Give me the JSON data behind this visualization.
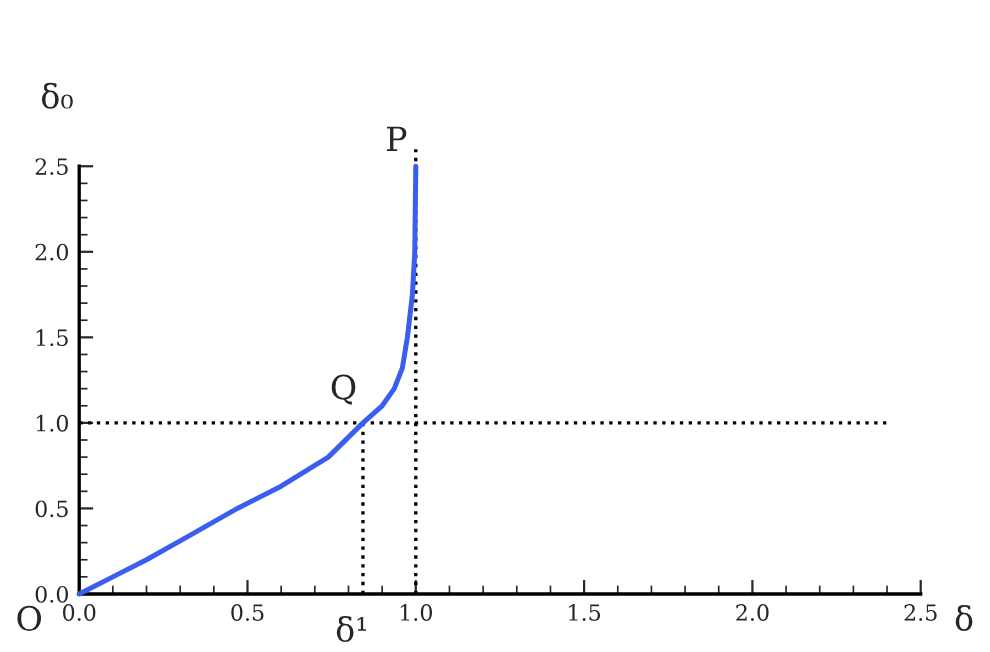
{
  "chart_data": {
    "type": "line",
    "xlabel": "δ",
    "ylabel": "δ₀",
    "series": [
      {
        "color": "#3a5ef0",
        "line_style": "solid",
        "x": [
          0,
          0.1,
          0.2,
          0.3,
          0.47,
          0.6,
          0.74,
          0.843,
          0.9,
          0.936,
          0.96,
          0.975,
          0.99,
          0.997,
          1.0
        ],
        "values": [
          0,
          0.1,
          0.2,
          0.31,
          0.5,
          0.63,
          0.8,
          1.0,
          1.1,
          1.2,
          1.32,
          1.5,
          1.75,
          2.0,
          2.5
        ]
      },
      {
        "color": "#000000",
        "line_style": "dotted",
        "x": [
          0,
          2.4
        ],
        "values": [
          1.0,
          1.0
        ]
      },
      {
        "color": "#000000",
        "line_style": "dotted",
        "x": [
          0.843,
          0.843
        ],
        "values": [
          0,
          1.0
        ]
      }
    ],
    "ref_lines": [
      {
        "axis": "x",
        "value": 1.0,
        "color": "#000000",
        "line_style": "dotted"
      }
    ],
    "annotations": [
      {
        "text": "O",
        "x": 0,
        "y": 0
      },
      {
        "text": "δ¹",
        "x": 0.843,
        "y": 0
      },
      {
        "text": "P",
        "x": 1.0,
        "y": 2.5
      },
      {
        "text": "Q",
        "x": 0.843,
        "y": 1.0
      }
    ],
    "xlim": [
      0,
      2.5
    ],
    "ylim": [
      0,
      2.5
    ],
    "xticks": [
      {
        "value": 0,
        "label": "0.0"
      },
      {
        "value": 0.5,
        "label": "0.5"
      },
      {
        "value": 1.0,
        "label": "1.0"
      },
      {
        "value": 1.5,
        "label": "1.5"
      },
      {
        "value": 2.0,
        "label": "2.0"
      },
      {
        "value": 2.5,
        "label": "2.5"
      }
    ],
    "yticks": [
      {
        "value": 0,
        "label": "0.0"
      },
      {
        "value": 0.5,
        "label": "0.5"
      },
      {
        "value": 1.0,
        "label": "1.0"
      },
      {
        "value": 1.5,
        "label": "1.5"
      },
      {
        "value": 2.0,
        "label": "2.0"
      },
      {
        "value": 2.5,
        "label": "2.5"
      }
    ],
    "grid": false,
    "legend": false
  }
}
